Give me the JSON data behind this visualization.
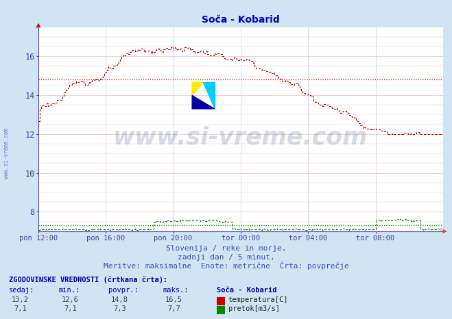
{
  "title": "Soča - Kobarid",
  "bg_color": "#d0e4f4",
  "plot_bg_color": "#ffffff",
  "grid_color_pink": "#f0c8c8",
  "grid_color_blue": "#c8d8ee",
  "title_color": "#0000bb",
  "axis_color": "#4444aa",
  "temp_color": "#cc0000",
  "flow_color": "#008800",
  "avg_temp_color": "#cc0000",
  "avg_flow_color": "#008800",
  "yticks": [
    8,
    10,
    12,
    14,
    16
  ],
  "ylim": [
    7.0,
    17.5
  ],
  "xlim_max": 288,
  "xtick_labels": [
    "pon 12:00",
    "pon 16:00",
    "pon 20:00",
    "tor 00:00",
    "tor 04:00",
    "tor 08:00"
  ],
  "xtick_positions": [
    0,
    48,
    96,
    144,
    192,
    240
  ],
  "temp_avg": 14.8,
  "flow_avg": 7.3,
  "subtitle1": "Slovenija / reke in morje.",
  "subtitle2": "zadnji dan / 5 minut.",
  "subtitle3": "Meritve: maksimalne  Enote: metrične  Črta: povprečje",
  "legend_title": "ZGODOVINSKE VREDNOSTI (črtkana črta):",
  "col_headers": [
    "sedaj:",
    "min.:",
    "povpr.:",
    "maks.:",
    "Soča - Kobarid"
  ],
  "temp_row": [
    "13,2",
    "12,6",
    "14,8",
    "16,5"
  ],
  "flow_row": [
    "7,1",
    "7,1",
    "7,3",
    "7,7"
  ],
  "temp_label": "temperatura[C]",
  "flow_label": "pretok[m3/s]",
  "watermark_text": "www.si-vreme.com",
  "side_text": "www.si-vreme.com"
}
